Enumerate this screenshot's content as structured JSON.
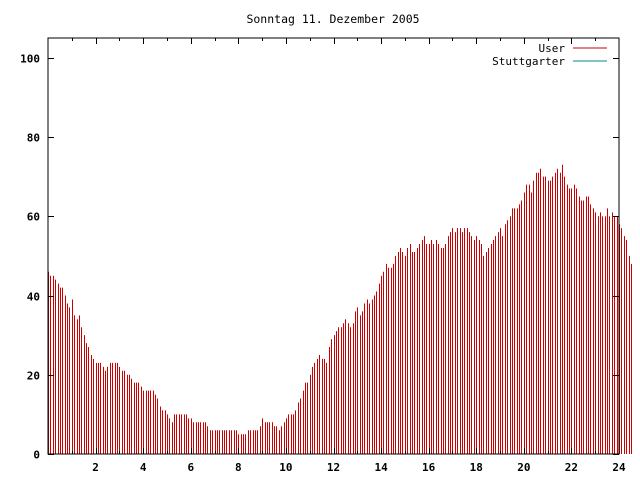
{
  "chart_data": {
    "type": "bar",
    "title": "Sonntag 11. Dezember 2005",
    "xlabel": "",
    "ylabel": "",
    "xlim": [
      0,
      24
    ],
    "ylim": [
      0,
      105
    ],
    "x_ticks": [
      "2",
      "4",
      "6",
      "8",
      "10",
      "12",
      "14",
      "16",
      "18",
      "20",
      "22",
      "24"
    ],
    "y_ticks": [
      "0",
      "20",
      "40",
      "60",
      "80",
      "100"
    ],
    "legend_position": "top-right",
    "grid": false,
    "series": [
      {
        "name": "User",
        "color": "#cc0000",
        "x_start": 0,
        "x_step": 0.1,
        "values": [
          46,
          45,
          45,
          44,
          43,
          42,
          42,
          40,
          38,
          37,
          39,
          35,
          34,
          35,
          32,
          30,
          28,
          27,
          25,
          24,
          23,
          23,
          23,
          22,
          21,
          22,
          23,
          23,
          23,
          23,
          22,
          21,
          21,
          20,
          20,
          19,
          18,
          18,
          18,
          17,
          16,
          16,
          16,
          16,
          16,
          15,
          14,
          12,
          11,
          11,
          10,
          9,
          8,
          10,
          10,
          10,
          10,
          10,
          10,
          9,
          9,
          8,
          8,
          8,
          8,
          8,
          8,
          7,
          6,
          6,
          6,
          6,
          6,
          6,
          6,
          6,
          6,
          6,
          6,
          6,
          5,
          5,
          5,
          5,
          6,
          6,
          6,
          6,
          6,
          7,
          9,
          8,
          8,
          8,
          8,
          7,
          7,
          6,
          7,
          8,
          9,
          10,
          10,
          10,
          11,
          13,
          14,
          16,
          18,
          18,
          20,
          22,
          23,
          24,
          25,
          24,
          24,
          23,
          27,
          29,
          30,
          31,
          32,
          32,
          33,
          34,
          33,
          32,
          33,
          36,
          37,
          35,
          36,
          38,
          39,
          38,
          39,
          40,
          41,
          43,
          45,
          46,
          48,
          47,
          47,
          48,
          50,
          51,
          52,
          51,
          50,
          52,
          53,
          51,
          51,
          52,
          53,
          54,
          55,
          53,
          53,
          54,
          53,
          54,
          53,
          52,
          52,
          53,
          55,
          56,
          57,
          56,
          57,
          57,
          56,
          57,
          57,
          56,
          55,
          54,
          55,
          54,
          53,
          50,
          51,
          52,
          53,
          54,
          55,
          56,
          57,
          55,
          58,
          59,
          60,
          62,
          62,
          62,
          63,
          64,
          66,
          68,
          68,
          66,
          69,
          71,
          71,
          72,
          70,
          70,
          69,
          69,
          70,
          71,
          72,
          71,
          73,
          70,
          68,
          67,
          67,
          68,
          67,
          65,
          64,
          64,
          65,
          65,
          63,
          62,
          61,
          60,
          61,
          60,
          60,
          62,
          60,
          61,
          60,
          60,
          58,
          57,
          55,
          54,
          50,
          48
        ]
      },
      {
        "name": "Stuttgarter",
        "color": "#008b8b",
        "x_start": 0,
        "x_step": 0.1,
        "values": []
      }
    ]
  }
}
